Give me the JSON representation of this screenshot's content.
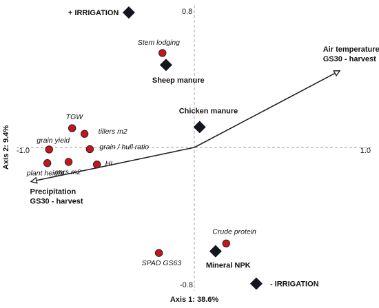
{
  "chart_data": {
    "type": "scatter",
    "title": "",
    "xlabel": "Axis 1: 38.6%",
    "ylabel": "Axis 2: 9.4%",
    "xlim": [
      -1.0,
      1.0
    ],
    "ylim": [
      -0.8,
      0.8
    ],
    "tick_labels": {
      "x_min": "-1.0",
      "x_max": "1.0",
      "y_max": "0.8",
      "y_min": "-0.8"
    },
    "colors": {
      "response": "#c8141b",
      "treatment": "#13161d",
      "axis": "#888888",
      "vector": "#222222"
    },
    "responses": [
      {
        "name": "Stem lodging",
        "x": -0.18,
        "y": 0.555
      },
      {
        "name": "TGW",
        "x": -0.69,
        "y": 0.113
      },
      {
        "name": "tillers m2",
        "x": -0.62,
        "y": 0.08
      },
      {
        "name": "grain yield",
        "x": -0.82,
        "y": -0.012
      },
      {
        "name": "grain / hull ratio",
        "x": -0.59,
        "y": -0.01
      },
      {
        "name": "plant height",
        "x": -0.83,
        "y": -0.092
      },
      {
        "name": "ears m2",
        "x": -0.71,
        "y": -0.085
      },
      {
        "name": "HI",
        "x": -0.55,
        "y": -0.1
      },
      {
        "name": "Crude protein",
        "x": 0.18,
        "y": -0.564
      },
      {
        "name": "SPAD GS63",
        "x": -0.2,
        "y": -0.62
      }
    ],
    "treatments": [
      {
        "name": "+ IRRIGATION",
        "x": -0.37,
        "y": 0.793
      },
      {
        "name": "Sheep manure",
        "x": -0.16,
        "y": 0.485
      },
      {
        "name": "Chicken manure",
        "x": 0.03,
        "y": 0.12
      },
      {
        "name": "Mineral NPK",
        "x": 0.12,
        "y": -0.61
      },
      {
        "name": "- IRRIGATION",
        "x": 0.35,
        "y": -0.8
      }
    ],
    "vectors": [
      {
        "name_line1": "Air temperature",
        "name_line2": "GS30 - harvest",
        "x": 0.82,
        "y": 0.45
      },
      {
        "name_line1": "Precipitation",
        "name_line2": "GS30 - harvest",
        "x": -0.92,
        "y": -0.2
      }
    ]
  }
}
